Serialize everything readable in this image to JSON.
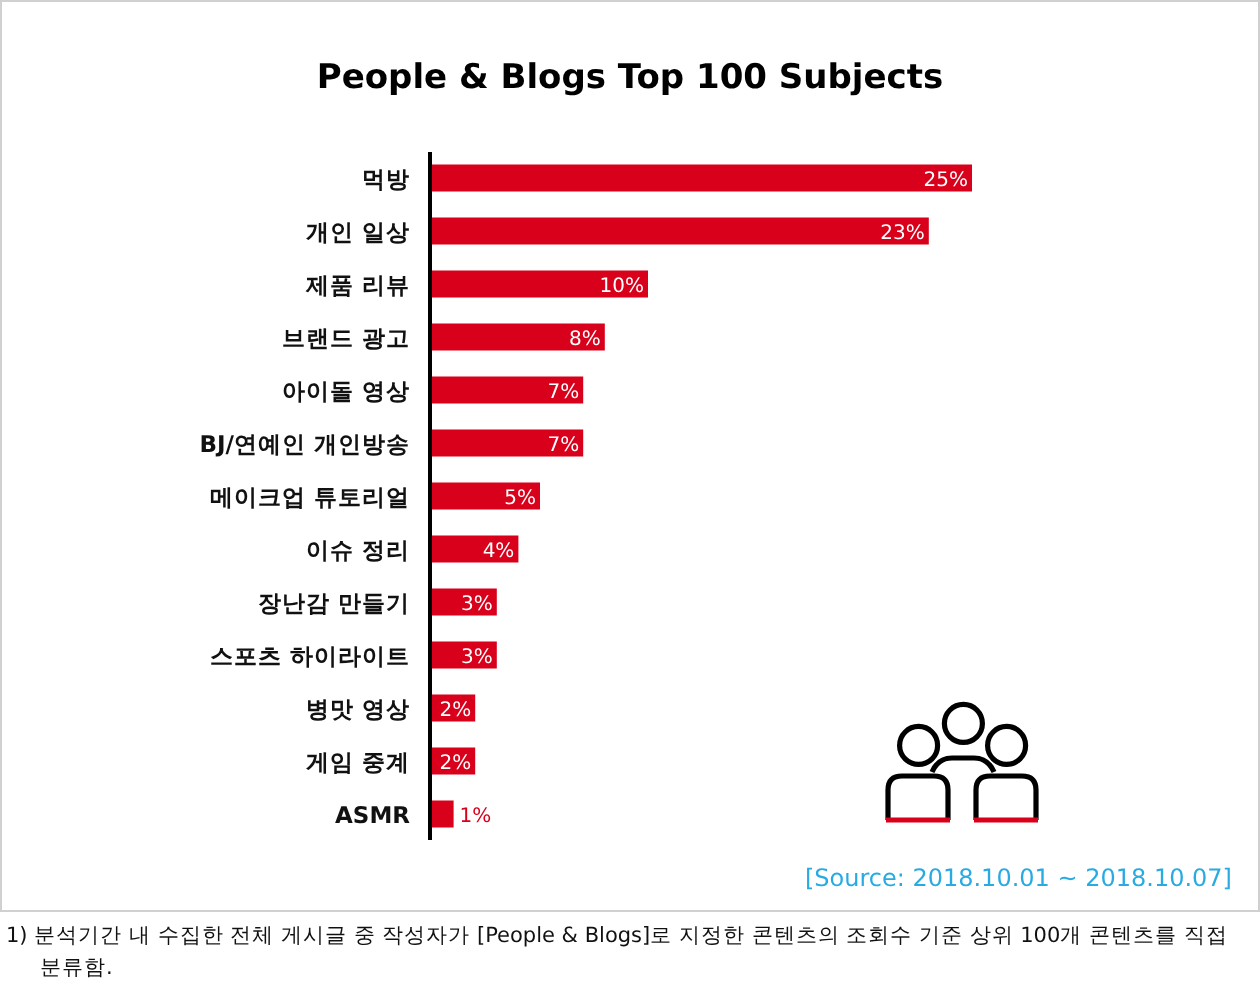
{
  "chart_data": {
    "type": "bar",
    "orientation": "horizontal",
    "title": "People & Blogs Top 100 Subjects",
    "categories": [
      "먹방",
      "개인 일상",
      "제품 리뷰",
      "브랜드 광고",
      "아이돌 영상",
      "BJ/연예인 개인방송",
      "메이크업 튜토리얼",
      "이슈 정리",
      "장난감 만들기",
      "스포츠 하이라이트",
      "병맛 영상",
      "게임 중계",
      "ASMR"
    ],
    "values": [
      25,
      23,
      10,
      8,
      7,
      7,
      5,
      4,
      3,
      3,
      2,
      2,
      1
    ],
    "value_labels": [
      "25%",
      "23%",
      "10%",
      "8%",
      "7%",
      "7%",
      "5%",
      "4%",
      "3%",
      "3%",
      "2%",
      "2%",
      "1%"
    ],
    "color": "#d9001b",
    "annotations": [
      "[Source: 2018.10.01 ~ 2018.10.07]",
      "1) 분석기간 내 수집한 전체 게시글 중 작성자가 [People & Blogs]로 지정한 콘텐츠의 조회수 기준 상위 100개 콘텐츠를 직접 분류함."
    ]
  }
}
